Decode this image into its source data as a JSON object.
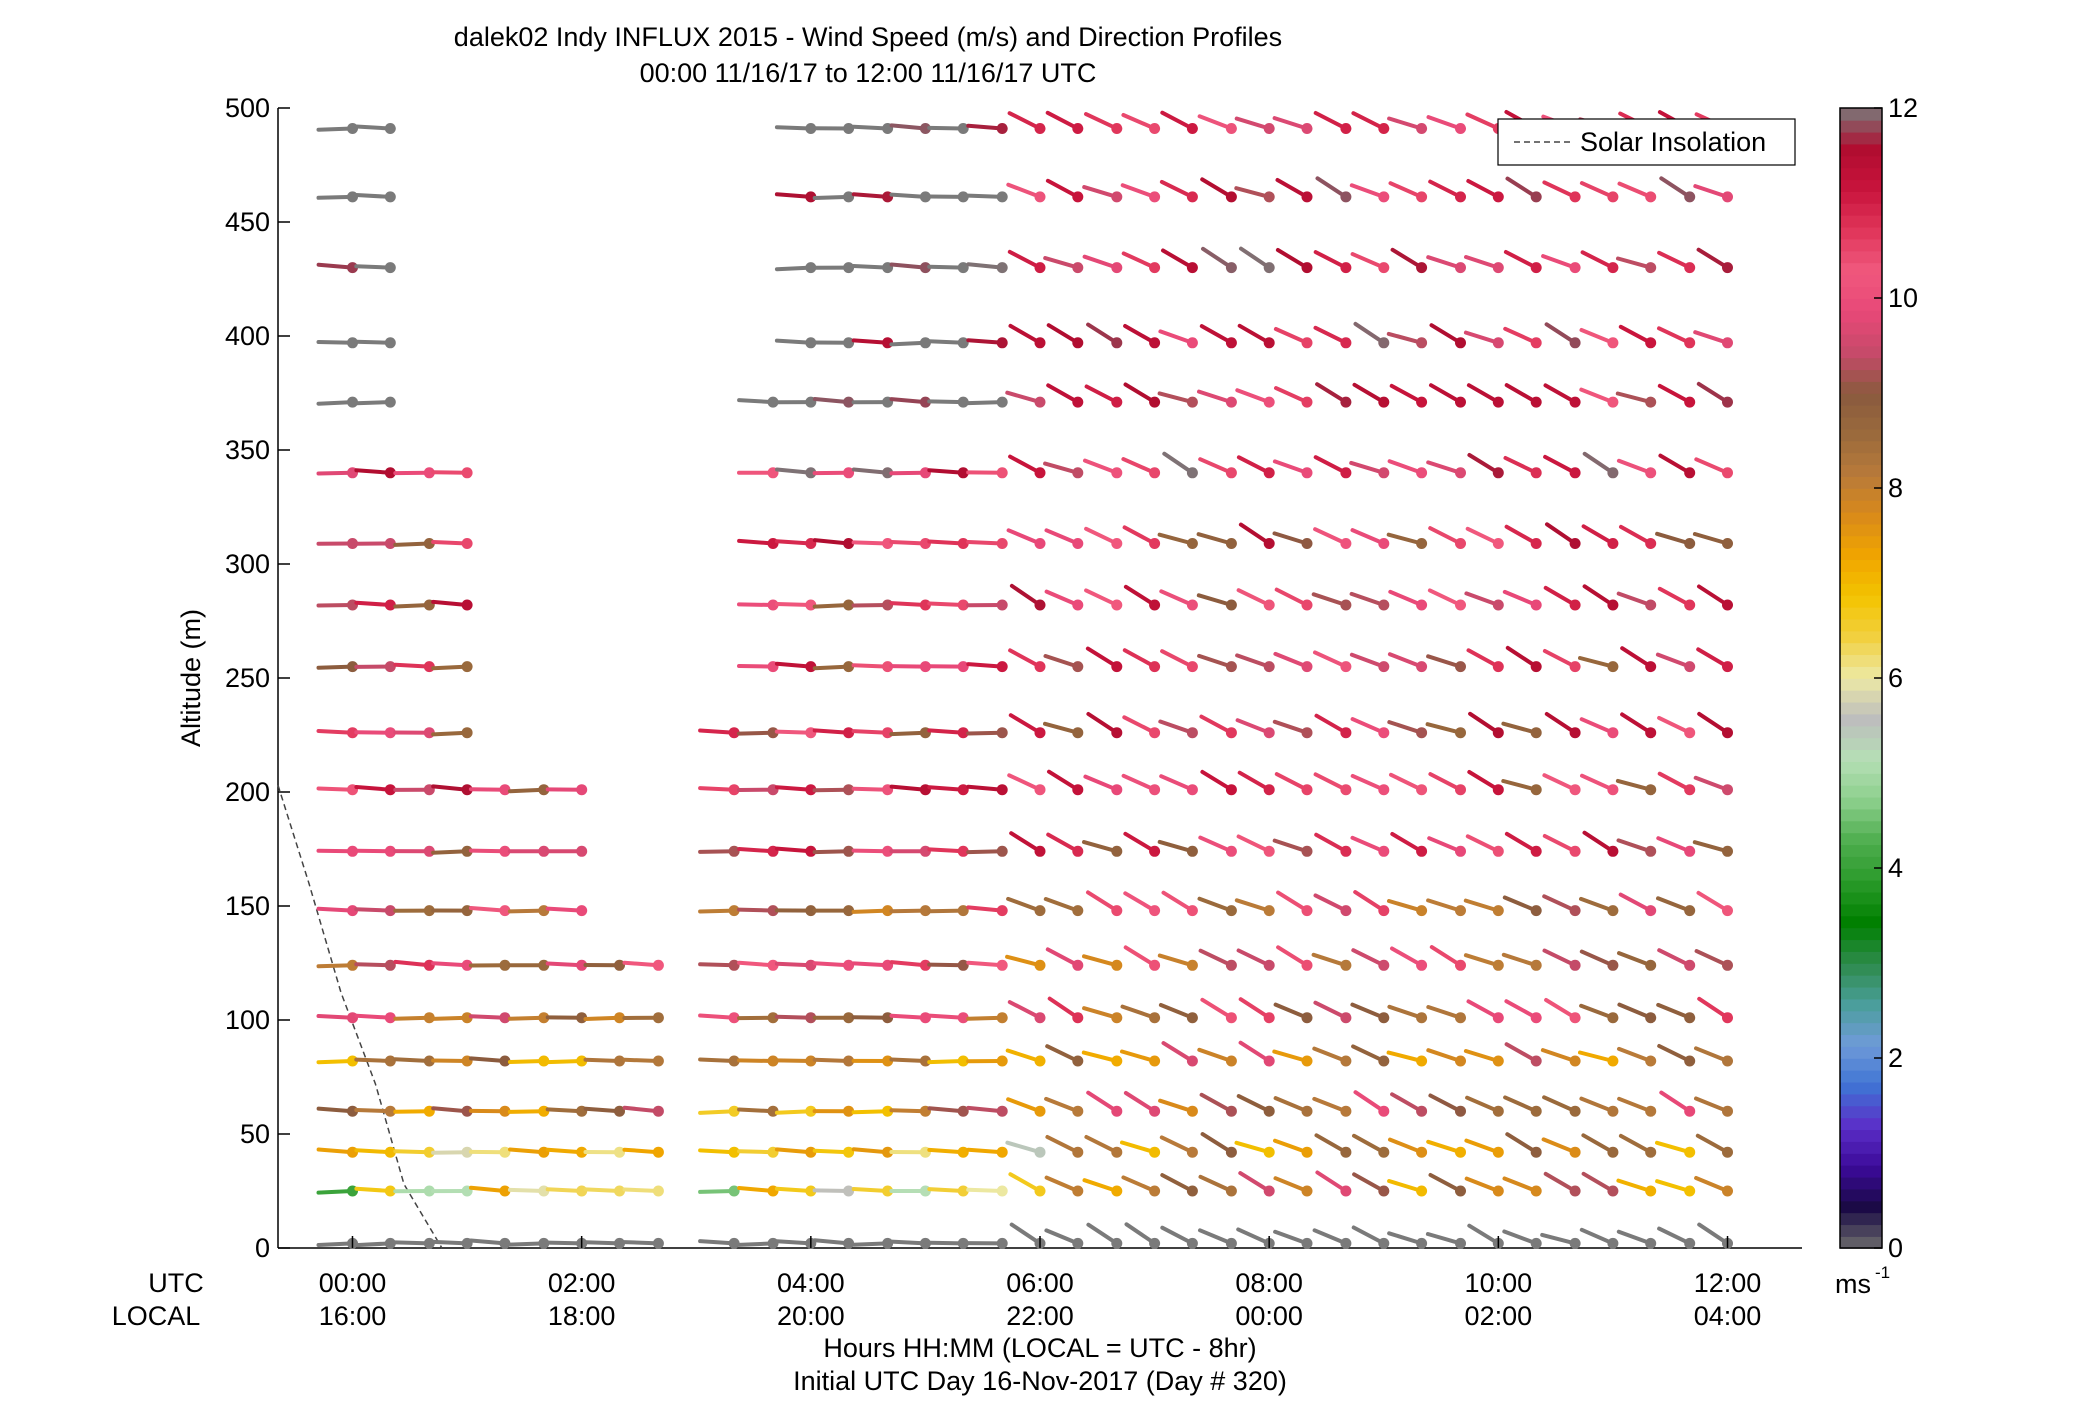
{
  "chart_data": {
    "type": "scatter",
    "title": "dalek02 Indy INFLUX 2015 - Wind Speed (m/s) and Direction Profiles",
    "subtitle": "00:00 11/16/17 to 12:00 11/16/17  UTC",
    "ylabel": "Altitude (m)",
    "xlabel": "Hours HH:MM  (LOCAL = UTC - 8hr)",
    "xlabel2": "Initial UTC Day 16-Nov-2017 (Day # 320)",
    "utc_label": "UTC",
    "local_label": "LOCAL",
    "x_unit": "hours UTC",
    "xlim": [
      -0.65,
      12.65
    ],
    "ylim": [
      0,
      500
    ],
    "xticks_utc": [
      "00:00",
      "02:00",
      "04:00",
      "06:00",
      "08:00",
      "10:00",
      "12:00"
    ],
    "xticks_local": [
      "16:00",
      "18:00",
      "20:00",
      "22:00",
      "00:00",
      "02:00",
      "04:00"
    ],
    "yticks": [
      0,
      50,
      100,
      150,
      200,
      250,
      300,
      350,
      400,
      450,
      500
    ],
    "legend": {
      "label": "Solar Insolation",
      "placement": "top-right"
    },
    "solar_insolation": [
      [
        -0.65,
        203
      ],
      [
        -0.38,
        160
      ],
      [
        -0.1,
        112
      ],
      [
        0.2,
        72
      ],
      [
        0.45,
        28
      ],
      [
        0.78,
        0
      ]
    ],
    "colorbar": {
      "unit": "ms",
      "unit_exponent": "-1",
      "range": [
        0,
        12
      ],
      "ticks": [
        "0",
        "2",
        "4",
        "6",
        "8",
        "10",
        "12"
      ],
      "colors": [
        "#6b6b6b",
        "#1a0a45",
        "#3c0a9a",
        "#5b2fc8",
        "#3f74d4",
        "#6f9bd8",
        "#4a9e9a",
        "#2d8a4a",
        "#008000",
        "#2a9a2a",
        "#4fae4f",
        "#8ccf8c",
        "#b5dfb5",
        "#bdbdbd",
        "#ece9a5",
        "#f2d040",
        "#f3c400",
        "#f0a500",
        "#d98a1a",
        "#b87a3a",
        "#9a6a3c",
        "#8a5a3e",
        "#c74a6a",
        "#e84878",
        "#f0587d",
        "#e0355a",
        "#c8143c",
        "#b00d30",
        "#7a7a7a"
      ]
    },
    "levels": [
      2,
      25,
      42,
      60,
      82,
      101,
      124,
      148,
      174,
      201,
      226,
      255,
      282,
      309,
      340,
      371,
      397,
      430,
      461,
      491
    ],
    "times": [
      0,
      0.33,
      0.67,
      1,
      1.33,
      1.67,
      2,
      2.33,
      2.67,
      3,
      3.33,
      3.67,
      4,
      4.33,
      4.67,
      5,
      5.33,
      5.67,
      6,
      6.33,
      6.67,
      7,
      7.33,
      7.67,
      8,
      8.33,
      8.67,
      9,
      9.33,
      9.67,
      10,
      10.33,
      10.67,
      11,
      11.33,
      11.67,
      12
    ],
    "gaps": [
      {
        "level_min": 380,
        "time_min": 0.4,
        "time_max": 4.0
      },
      {
        "level_min": 350,
        "time_min": 0.5,
        "time_max": 3.6
      },
      {
        "level_min": 240,
        "time_min": 1.1,
        "time_max": 3.6
      },
      {
        "level_min": 210,
        "time_min": 1.1,
        "time_max": 3.2
      },
      {
        "level_min": 180,
        "time_min": 2.1,
        "time_max": 3.2
      },
      {
        "level_min": 140,
        "time_min": 2.1,
        "time_max": 3.2
      },
      {
        "level_min": 110,
        "time_min": 3.2,
        "time_max": 3.2
      },
      {
        "level_min": 0,
        "time_min": 2.7,
        "time_max": 3.1
      }
    ],
    "note": "Wind barbs: each mark shows wind speed (color, m/s) and direction at a given time and altitude."
  }
}
